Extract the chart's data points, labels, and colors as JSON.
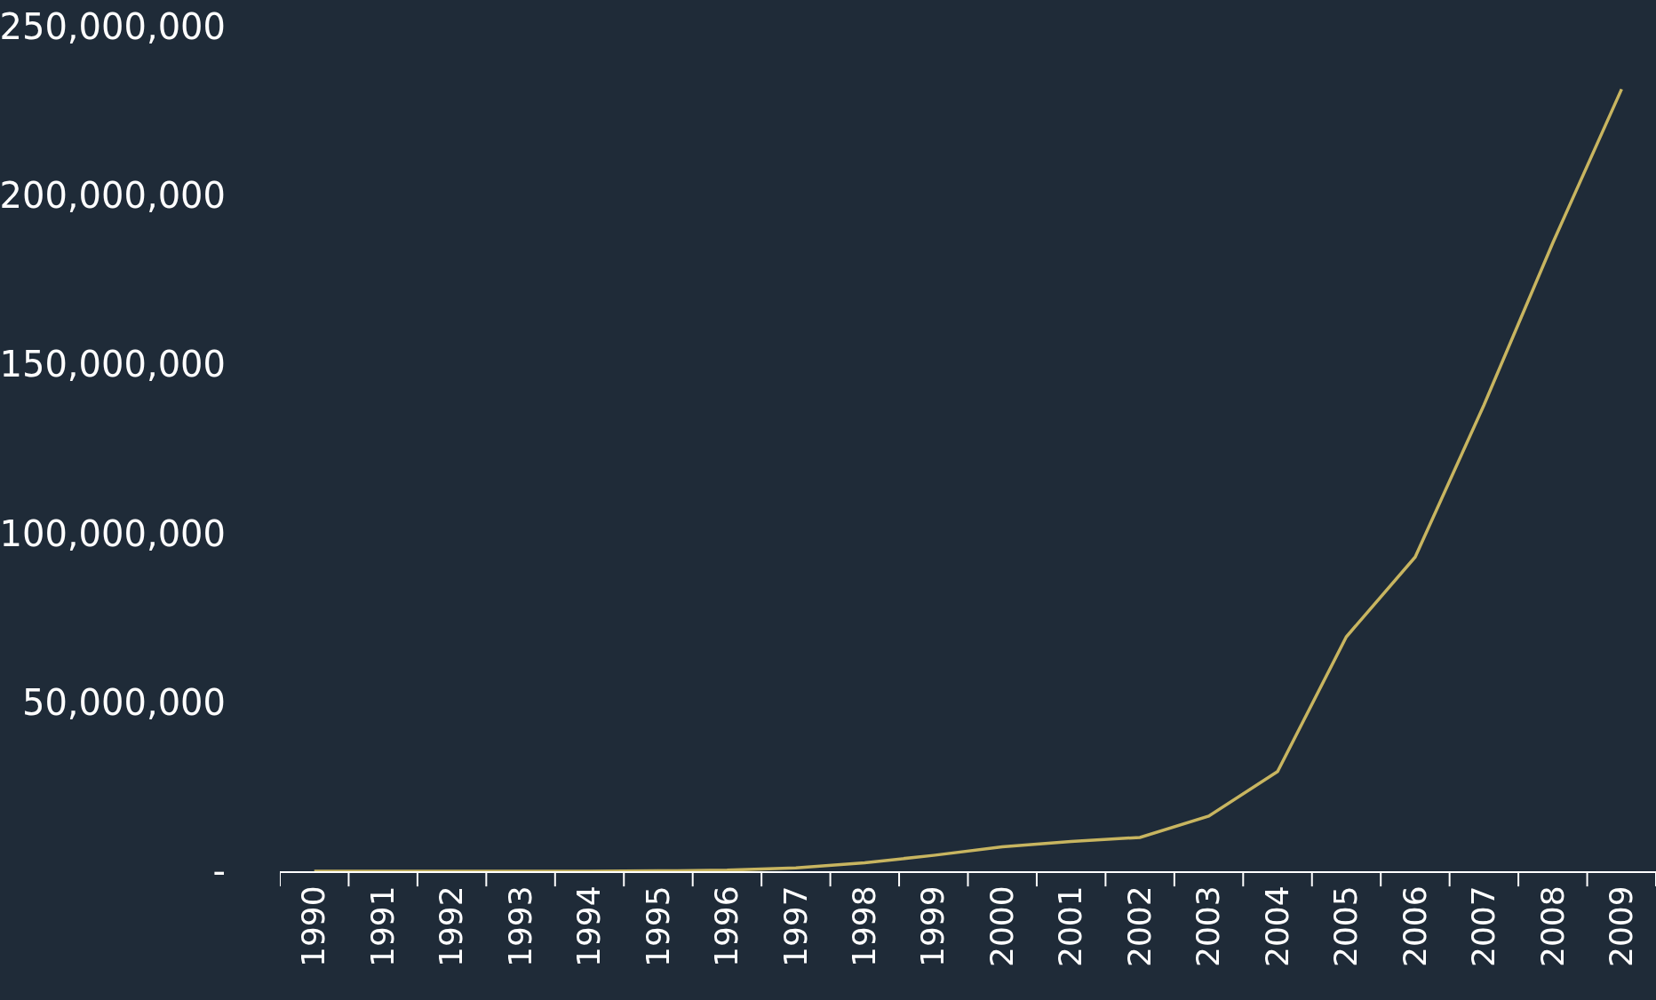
{
  "chart_data": {
    "type": "line",
    "categories": [
      "1990",
      "1991",
      "1992",
      "1993",
      "1994",
      "1995",
      "1996",
      "1997",
      "1998",
      "1999",
      "2000",
      "2001",
      "2002",
      "2003",
      "2004",
      "2005",
      "2006",
      "2007",
      "2008",
      "2009"
    ],
    "series": [
      {
        "color": "#c8b560",
        "values": [
          0,
          0,
          0,
          0,
          0,
          100000.0,
          300000.0,
          1000000.0,
          2500000.0,
          4700000.0,
          7200000.0,
          8800000.0,
          10000000.0,
          16300000.0,
          29500000.0,
          69400000.0,
          93000000.0,
          138000000.0,
          186000000.0,
          231500000.0
        ]
      }
    ],
    "ylim": [
      0,
      250000000
    ],
    "yticks": [
      {
        "value": 0,
        "label": "-"
      },
      {
        "value": 50000000,
        "label": "50,000,000"
      },
      {
        "value": 100000000,
        "label": "100,000,000"
      },
      {
        "value": 150000000,
        "label": "150,000,000"
      },
      {
        "value": 200000000,
        "label": "200,000,000"
      },
      {
        "value": 250000000,
        "label": "250,000,000"
      }
    ],
    "grid": false,
    "legend": false
  }
}
